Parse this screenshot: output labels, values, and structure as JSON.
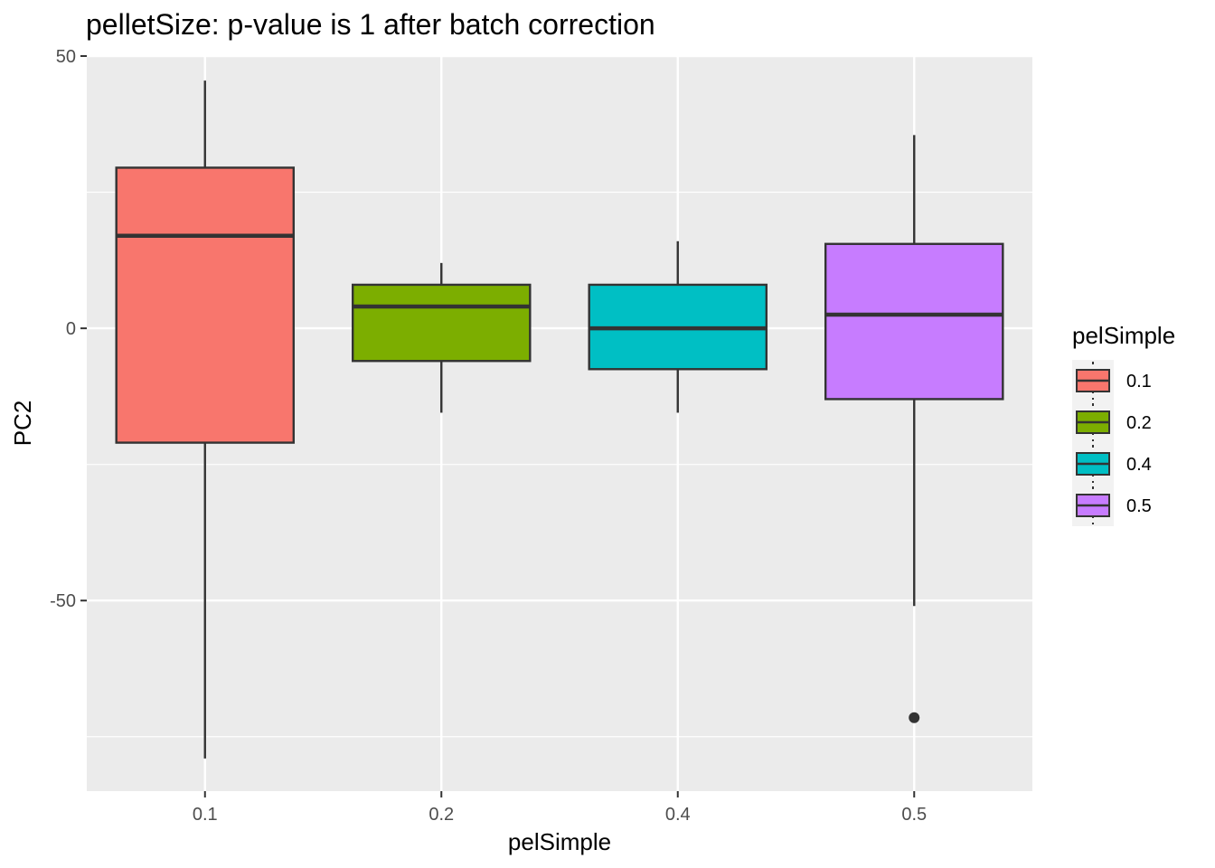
{
  "chart_data": {
    "type": "boxplot",
    "title": "pelletSize: p-value is 1 after batch correction",
    "xlabel": "pelSimple",
    "ylabel": "PC2",
    "categories": [
      "0.1",
      "0.2",
      "0.4",
      "0.5"
    ],
    "ylim": [
      -85,
      50
    ],
    "yticks": [
      -50,
      0,
      50
    ],
    "ytick_labels": [
      "-50",
      "0",
      "50"
    ],
    "grid": true,
    "legend": {
      "title": "pelSimple",
      "position": "right",
      "entries": [
        "0.1",
        "0.2",
        "0.4",
        "0.5"
      ]
    },
    "colors": [
      "#F8766D",
      "#7CAE00",
      "#00BFC4",
      "#C77CFF"
    ],
    "panel_background": "#EBEBEB",
    "boxes": [
      {
        "category": "0.1",
        "whisker_low": -79,
        "q1": -21,
        "median": 17,
        "q3": 29.5,
        "whisker_high": 45.5,
        "outliers": []
      },
      {
        "category": "0.2",
        "whisker_low": -15.5,
        "q1": -6,
        "median": 4,
        "q3": 8,
        "whisker_high": 12,
        "outliers": []
      },
      {
        "category": "0.4",
        "whisker_low": -15.5,
        "q1": -7.5,
        "median": 0,
        "q3": 8,
        "whisker_high": 16,
        "outliers": []
      },
      {
        "category": "0.5",
        "whisker_low": -51,
        "q1": -13,
        "median": 2.5,
        "q3": 15.5,
        "whisker_high": 35.5,
        "outliers": [
          -71.5
        ]
      }
    ]
  }
}
